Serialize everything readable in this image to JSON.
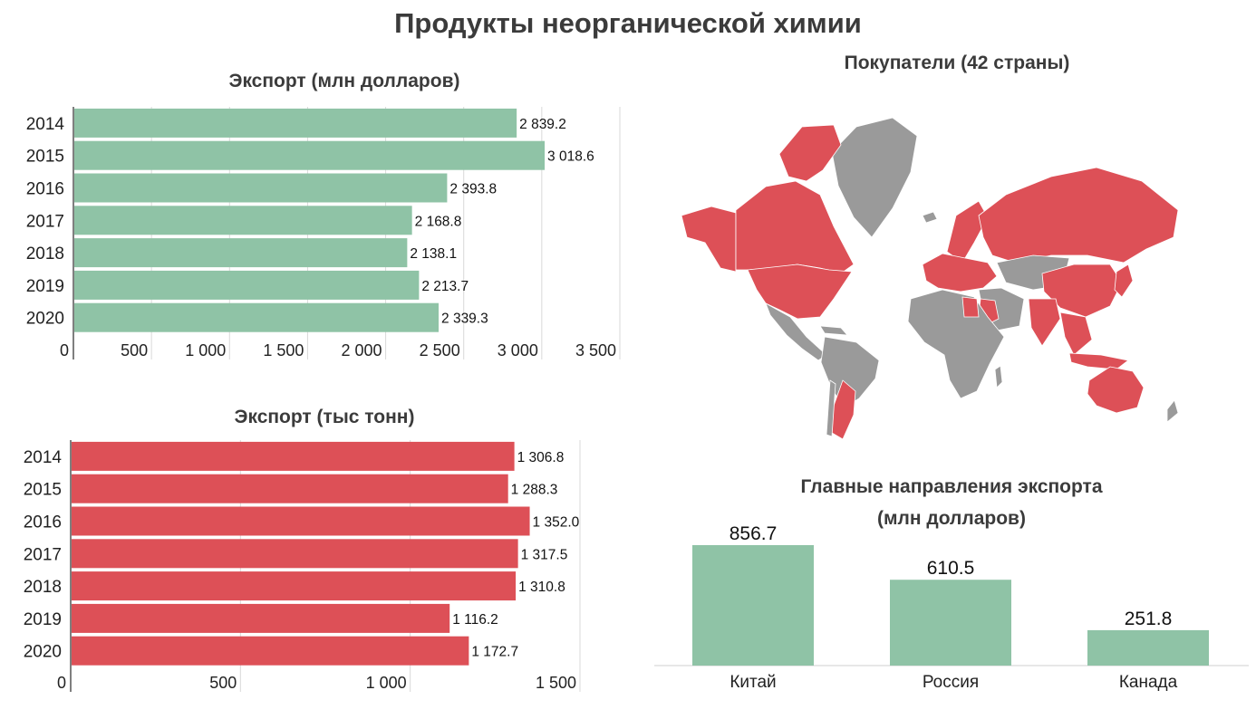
{
  "title": "Продукты неорганической химии",
  "charts": {
    "export_usd": {
      "title": "Экспорт (млн долларов)"
    },
    "export_tons": {
      "title": "Экспорт (тыс тонн)"
    },
    "destinations": {
      "title_line1": "Главные направления экспорта",
      "title_line2": "(млн долларов)"
    }
  },
  "map": {
    "title": "Покупатели (42 страны)",
    "colors": {
      "buyer": "#dd5057",
      "other": "#9a9a9a"
    }
  },
  "colors": {
    "green": "#8fc3a6",
    "red": "#dd5057"
  },
  "chart_data": [
    {
      "type": "bar",
      "orientation": "horizontal",
      "title": "Экспорт (млн долларов)",
      "categories": [
        "2014",
        "2015",
        "2016",
        "2017",
        "2018",
        "2019",
        "2020"
      ],
      "values": [
        2839.2,
        3018.6,
        2393.8,
        2168.8,
        2138.1,
        2213.7,
        2339.3
      ],
      "value_labels": [
        "2 839.2",
        "3 018.6",
        "2 393.8",
        "2 168.8",
        "2 138.1",
        "2 213.7",
        "2 339.3"
      ],
      "xlim": [
        0,
        3500
      ],
      "ticks": [
        0,
        500,
        1000,
        1500,
        2000,
        2500,
        3000,
        3500
      ],
      "tick_labels": [
        "0",
        "500",
        "1 000",
        "1 500",
        "2 000",
        "2 500",
        "3 000",
        "3 500"
      ],
      "grid": true
    },
    {
      "type": "bar",
      "orientation": "horizontal",
      "title": "Экспорт (тыс тонн)",
      "categories": [
        "2014",
        "2015",
        "2016",
        "2017",
        "2018",
        "2019",
        "2020"
      ],
      "values": [
        1306.8,
        1288.3,
        1352.0,
        1317.5,
        1310.8,
        1116.2,
        1172.7
      ],
      "value_labels": [
        "1 306.8",
        "1 288.3",
        "1 352.0",
        "1 317.5",
        "1 310.8",
        "1 116.2",
        "1 172.7"
      ],
      "xlim": [
        0,
        1500
      ],
      "ticks": [
        0,
        500,
        1000,
        1500
      ],
      "tick_labels": [
        "0",
        "500",
        "1 000",
        "1 500"
      ],
      "grid": true
    },
    {
      "type": "bar",
      "orientation": "vertical",
      "title": "Главные направления экспорта (млн долларов)",
      "categories": [
        "Китай",
        "Россия",
        "Канада"
      ],
      "values": [
        856.7,
        610.5,
        251.8
      ],
      "value_labels": [
        "856.7",
        "610.5",
        "251.8"
      ],
      "ylim": [
        0,
        856.7
      ],
      "grid": false
    }
  ]
}
